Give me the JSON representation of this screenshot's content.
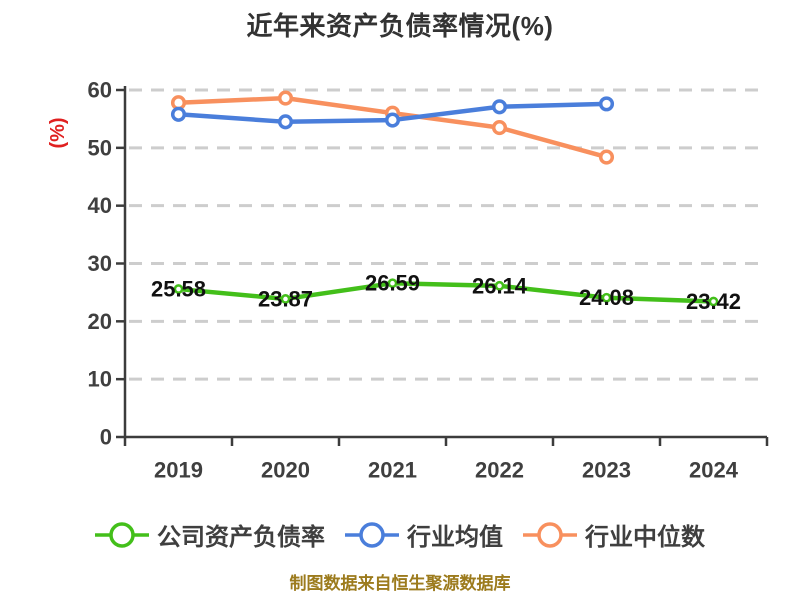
{
  "chart_data": {
    "type": "line",
    "title": "近年来资产负债率情况(%)",
    "categories": [
      "2019",
      "2020",
      "2021",
      "2022",
      "2023",
      "2024"
    ],
    "series": [
      {
        "name": "公司资产负债率",
        "color": "#43bf1a",
        "values": [
          25.58,
          23.87,
          26.59,
          26.14,
          24.08,
          23.42
        ],
        "show_labels": true
      },
      {
        "name": "行业均值",
        "color": "#4a7edb",
        "values": [
          55.8,
          54.5,
          54.8,
          57.1,
          57.6,
          null
        ],
        "show_labels": false
      },
      {
        "name": "行业中位数",
        "color": "#f8905e",
        "values": [
          57.8,
          58.6,
          56.0,
          53.5,
          48.4,
          null
        ],
        "show_labels": false
      }
    ],
    "xlabel": "",
    "ylabel": "(%)",
    "ylim": [
      0,
      60
    ],
    "ytick_step": 10,
    "yticks": [
      "0",
      "10",
      "20",
      "30",
      "40",
      "50",
      "60"
    ],
    "grid": {
      "horizontal": true,
      "style": "dashed"
    },
    "legend_position": "bottom",
    "source_note": "制图数据来自恒生聚源数据库",
    "colors": {
      "axis": "#3c3c3c",
      "grid": "#cdcdcd",
      "tick_label": "#3f3f3f",
      "data_label": "#111111",
      "title": "#333333",
      "ylabel": "#e02020",
      "source_note": "#9c7b1d",
      "marker_fill": "#ffffff"
    }
  }
}
